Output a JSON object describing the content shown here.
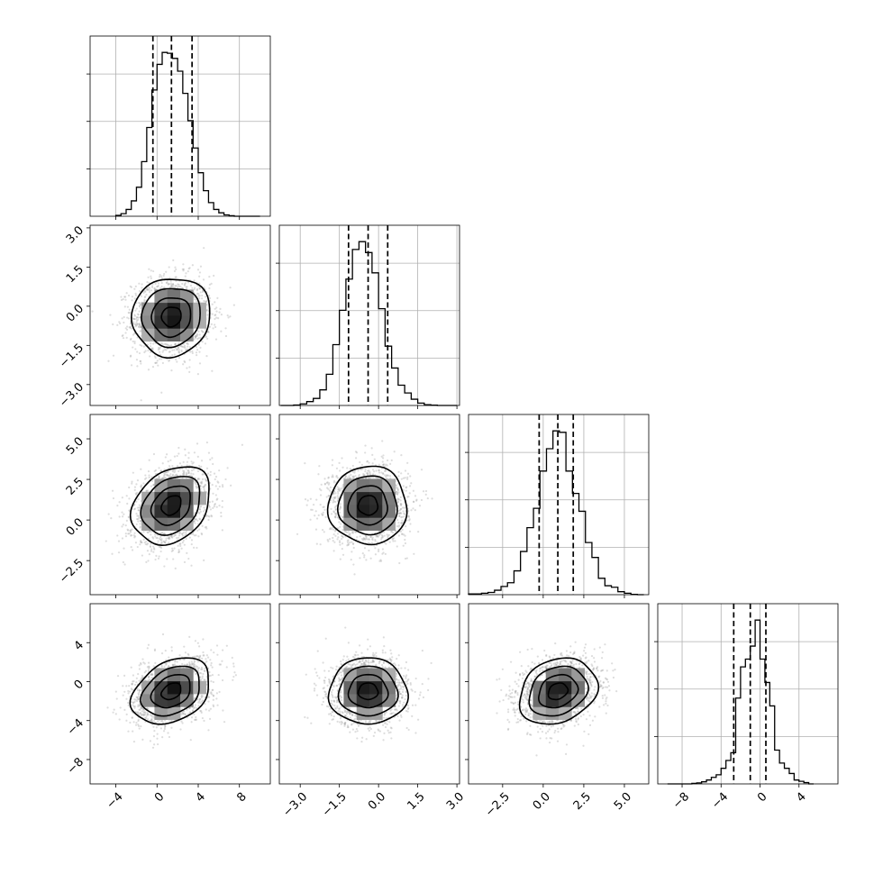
{
  "chart_data": {
    "type": "corner",
    "grid": true,
    "n_params": 4,
    "params": [
      {
        "range": [
          -6.5,
          11.0
        ],
        "ticks": [
          -4,
          0,
          4,
          8
        ],
        "tick_labels": [
          "−4",
          "0",
          "4",
          "8"
        ],
        "mean": 1.4,
        "sd": 1.9,
        "quantiles": [
          -0.4,
          1.4,
          3.4
        ],
        "hist_x": [
          -4.0,
          -3.5,
          -3.0,
          -2.5,
          -2.0,
          -1.5,
          -1.0,
          -0.5,
          0.0,
          0.5,
          1.0,
          1.5,
          2.0,
          2.5,
          3.0,
          3.5,
          4.0,
          4.5,
          5.0,
          5.5,
          6.0,
          6.5,
          7.0,
          7.5,
          8.0,
          8.5,
          9.0,
          9.5,
          10.0
        ],
        "hist_y": [
          5,
          15,
          40,
          90,
          170,
          320,
          520,
          740,
          890,
          960,
          955,
          925,
          850,
          720,
          560,
          400,
          255,
          150,
          80,
          40,
          20,
          8,
          3,
          0,
          0,
          0,
          0,
          0
        ]
      },
      {
        "range": [
          -3.8,
          3.1
        ],
        "ticks": [
          -3.0,
          -1.5,
          0.0,
          1.5,
          3.0
        ],
        "tick_labels": [
          "−3.0",
          "−1.5",
          "0.0",
          "1.5",
          "3.0"
        ],
        "mean": -0.4,
        "sd": 0.75,
        "quantiles": [
          -1.15,
          -0.4,
          0.35
        ],
        "hist_x": [
          -3.75,
          -3.5,
          -3.25,
          -3.0,
          -2.75,
          -2.5,
          -2.25,
          -2.0,
          -1.75,
          -1.5,
          -1.25,
          -1.0,
          -0.75,
          -0.5,
          -0.25,
          0.0,
          0.25,
          0.5,
          0.75,
          1.0,
          1.25,
          1.5,
          1.75,
          2.0,
          2.25,
          2.5,
          2.75,
          3.0
        ],
        "hist_y": [
          0,
          0,
          3,
          10,
          25,
          45,
          100,
          200,
          390,
          610,
          810,
          1000,
          1050,
          980,
          850,
          620,
          380,
          240,
          130,
          80,
          40,
          15,
          5,
          2,
          0,
          0,
          0
        ]
      },
      {
        "range": [
          -4.6,
          6.5
        ],
        "ticks": [
          -2.5,
          0.0,
          2.5,
          5.0
        ],
        "tick_labels": [
          "−2.5",
          "0.0",
          "2.5",
          "5.0"
        ],
        "mean": 0.9,
        "sd": 1.2,
        "quantiles": [
          -0.25,
          0.9,
          1.85
        ],
        "hist_x": [
          -4.6,
          -4.2,
          -3.8,
          -3.4,
          -3.0,
          -2.6,
          -2.2,
          -1.8,
          -1.4,
          -1.0,
          -0.6,
          -0.2,
          0.2,
          0.6,
          1.0,
          1.4,
          1.8,
          2.2,
          2.6,
          3.0,
          3.4,
          3.8,
          4.2,
          4.6,
          5.0,
          5.4,
          5.8,
          6.2
        ],
        "hist_y": [
          5,
          5,
          10,
          15,
          30,
          55,
          80,
          160,
          290,
          450,
          580,
          830,
          980,
          1100,
          1090,
          830,
          680,
          560,
          350,
          250,
          110,
          60,
          50,
          20,
          10,
          2,
          0
        ]
      },
      {
        "range": [
          -10.5,
          8.0
        ],
        "ticks": [
          -8,
          -4,
          0,
          4
        ],
        "tick_labels": [
          "−8",
          "−4",
          "0",
          "4"
        ],
        "mean": -1.0,
        "sd": 1.7,
        "quantiles": [
          -2.7,
          -1.0,
          0.6
        ],
        "hist_x": [
          -9.5,
          -9.0,
          -8.5,
          -8.0,
          -7.5,
          -7.0,
          -6.5,
          -6.0,
          -5.5,
          -5.0,
          -4.5,
          -4.0,
          -3.5,
          -3.0,
          -2.5,
          -2.0,
          -1.5,
          -1.0,
          -0.5,
          0.0,
          0.5,
          1.0,
          1.5,
          2.0,
          2.5,
          3.0,
          3.5,
          4.0,
          4.5,
          5.0,
          5.5
        ],
        "hist_y": [
          0,
          0,
          0,
          0,
          0,
          2,
          4,
          8,
          15,
          25,
          35,
          60,
          90,
          120,
          330,
          450,
          480,
          530,
          630,
          480,
          390,
          300,
          130,
          80,
          60,
          40,
          15,
          10,
          5,
          0
        ]
      }
    ],
    "pairs": [
      {
        "row": 1,
        "col": 0,
        "corr": 0.05
      },
      {
        "row": 2,
        "col": 0,
        "corr": 0.28
      },
      {
        "row": 2,
        "col": 1,
        "corr": 0.0
      },
      {
        "row": 3,
        "col": 0,
        "corr": 0.32
      },
      {
        "row": 3,
        "col": 1,
        "corr": 0.0
      },
      {
        "row": 3,
        "col": 2,
        "corr": 0.22
      }
    ],
    "contour_levels_sigma": [
      0.5,
      1.0,
      1.5,
      2.0
    ],
    "colors": {
      "line": "#000000",
      "grid": "#b0b0b0",
      "points": "#9e9e9e"
    }
  }
}
